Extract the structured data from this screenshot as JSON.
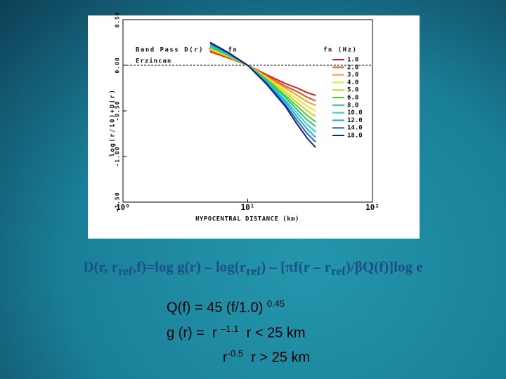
{
  "chart_data": {
    "type": "line",
    "title": "Band Pass D(r) for fn",
    "subtitle": "Erzincan",
    "legend_title": "fn (Hz)",
    "xlabel": "HYPOCENTRAL DISTANCE (km)",
    "ylabel": "log(r/10)+D(r)",
    "x": [
      5,
      7,
      10,
      14,
      20,
      25,
      30,
      35
    ],
    "series": [
      {
        "name": "1.0",
        "color": "#e8141b",
        "values": [
          0.15,
          0.08,
          0,
          -0.1,
          -0.2,
          -0.25,
          -0.3,
          -0.33
        ]
      },
      {
        "name": "2.0",
        "color": "#f04a1a",
        "values": [
          0.16,
          0.09,
          0,
          -0.11,
          -0.23,
          -0.29,
          -0.35,
          -0.39
        ]
      },
      {
        "name": "3.0",
        "color": "#f7a21c",
        "values": [
          0.17,
          0.09,
          0,
          -0.12,
          -0.25,
          -0.33,
          -0.4,
          -0.44
        ]
      },
      {
        "name": "4.0",
        "color": "#f2e61c",
        "values": [
          0.18,
          0.1,
          0,
          -0.13,
          -0.28,
          -0.37,
          -0.45,
          -0.5
        ]
      },
      {
        "name": "5.0",
        "color": "#b8e01e",
        "values": [
          0.19,
          0.1,
          0,
          -0.14,
          -0.3,
          -0.41,
          -0.5,
          -0.56
        ]
      },
      {
        "name": "6.0",
        "color": "#4cd22a",
        "values": [
          0.2,
          0.11,
          0,
          -0.15,
          -0.33,
          -0.45,
          -0.55,
          -0.62
        ]
      },
      {
        "name": "8.0",
        "color": "#22c87a",
        "values": [
          0.21,
          0.12,
          0,
          -0.16,
          -0.35,
          -0.49,
          -0.6,
          -0.67
        ]
      },
      {
        "name": "10.0",
        "color": "#21d6c8",
        "values": [
          0.22,
          0.12,
          0,
          -0.17,
          -0.38,
          -0.53,
          -0.65,
          -0.73
        ]
      },
      {
        "name": "12.0",
        "color": "#1ea8e6",
        "values": [
          0.23,
          0.13,
          0,
          -0.18,
          -0.4,
          -0.57,
          -0.7,
          -0.79
        ]
      },
      {
        "name": "14.0",
        "color": "#1a64c8",
        "values": [
          0.24,
          0.13,
          0,
          -0.19,
          -0.43,
          -0.61,
          -0.75,
          -0.84
        ]
      },
      {
        "name": "18.0",
        "color": "#14207a",
        "values": [
          0.25,
          0.14,
          0,
          -0.2,
          -0.45,
          -0.65,
          -0.8,
          -0.9
        ]
      }
    ],
    "xscale": "log",
    "xlim": [
      1,
      100
    ],
    "xticks": [
      {
        "value": 1,
        "label": "10⁰"
      },
      {
        "value": 10,
        "label": "10¹"
      },
      {
        "value": 100,
        "label": "10²"
      }
    ],
    "ylim": [
      -1.5,
      0.5
    ],
    "yticks": [
      {
        "value": -1.5,
        "label": "-1.50"
      },
      {
        "value": -1,
        "label": "-1.00"
      },
      {
        "value": -0.5,
        "label": "-0.50"
      },
      {
        "value": 0,
        "label": "0.00"
      },
      {
        "value": 0.5,
        "label": "0.50"
      }
    ],
    "hline": 0,
    "legend": "upper right"
  },
  "slide": {
    "equation": [
      "D(r, r",
      "ref",
      ",f)=log g(r) – log(r",
      "ref",
      ") – [πf(r – r",
      "ref",
      ")/βQ(f)]log e"
    ],
    "notes": [
      [
        "Q(f) = 45 (f/1.0) ",
        "0.45"
      ],
      [
        "g (r) =  r ",
        "–1.1",
        "  r < 25 km"
      ],
      [
        "r",
        "-0.5",
        "  r > 25 km"
      ]
    ]
  }
}
